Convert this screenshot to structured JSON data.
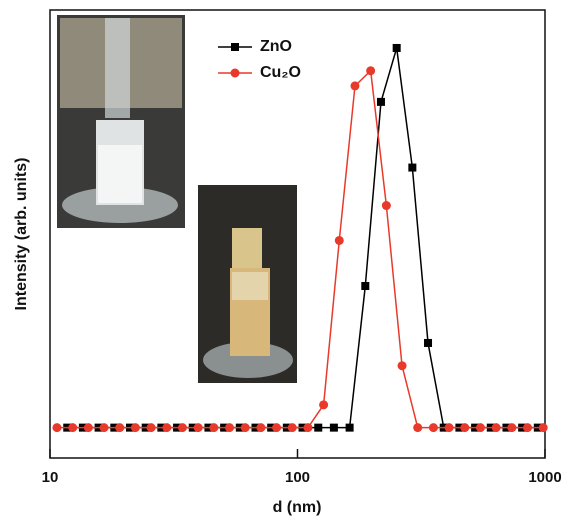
{
  "chart_data": {
    "type": "line",
    "xlabel": "d (nm)",
    "ylabel": "Intensity (arb. units)",
    "xscale": "log",
    "xlim": [
      10,
      1000
    ],
    "xticks": [
      10,
      100,
      1000
    ],
    "ylim": [
      -8,
      110
    ],
    "legend": "upper center",
    "series": [
      {
        "name": "ZnO",
        "color": "#000000",
        "marker": "square",
        "x": [
          11.74,
          13.58,
          15.72,
          18.19,
          21.05,
          24.36,
          28.18,
          32.61,
          37.74,
          43.67,
          50.53,
          58.47,
          67.65,
          78.28,
          90.58,
          104.8,
          121.3,
          140.3,
          162.4,
          187.9,
          217.4,
          251.6,
          291.1,
          336.8,
          389.8,
          451.0,
          521.9,
          603.9,
          698.7,
          808.5,
          935.5
        ],
        "values": [
          0,
          0,
          0,
          0,
          0,
          0,
          0,
          0,
          0,
          0,
          0,
          0,
          0,
          0,
          0,
          0,
          0,
          0,
          0,
          37.3,
          85.8,
          100,
          68.5,
          22.3,
          0,
          0,
          0,
          0,
          0,
          0,
          0
        ]
      },
      {
        "name": "Cu₂O",
        "color": "#e8392a",
        "marker": "circle",
        "x": [
          10.67,
          12.35,
          14.29,
          16.53,
          19.13,
          22.13,
          25.61,
          29.64,
          34.29,
          39.68,
          45.91,
          53.12,
          61.47,
          71.13,
          82.3,
          95.23,
          110.2,
          127.5,
          147.5,
          170.7,
          197.5,
          228.6,
          264.5,
          306.0,
          354.1,
          409.7,
          474.1,
          548.6,
          634.8,
          734.5,
          849.9,
          983.4
        ],
        "values": [
          0,
          0,
          0,
          0,
          0,
          0,
          0,
          0,
          0,
          0,
          0,
          0,
          0,
          0,
          0,
          0,
          0,
          6.0,
          49.3,
          90.0,
          94.0,
          58.5,
          16.3,
          0,
          0,
          0,
          0,
          0,
          0,
          0,
          0,
          0
        ]
      }
    ]
  }
}
